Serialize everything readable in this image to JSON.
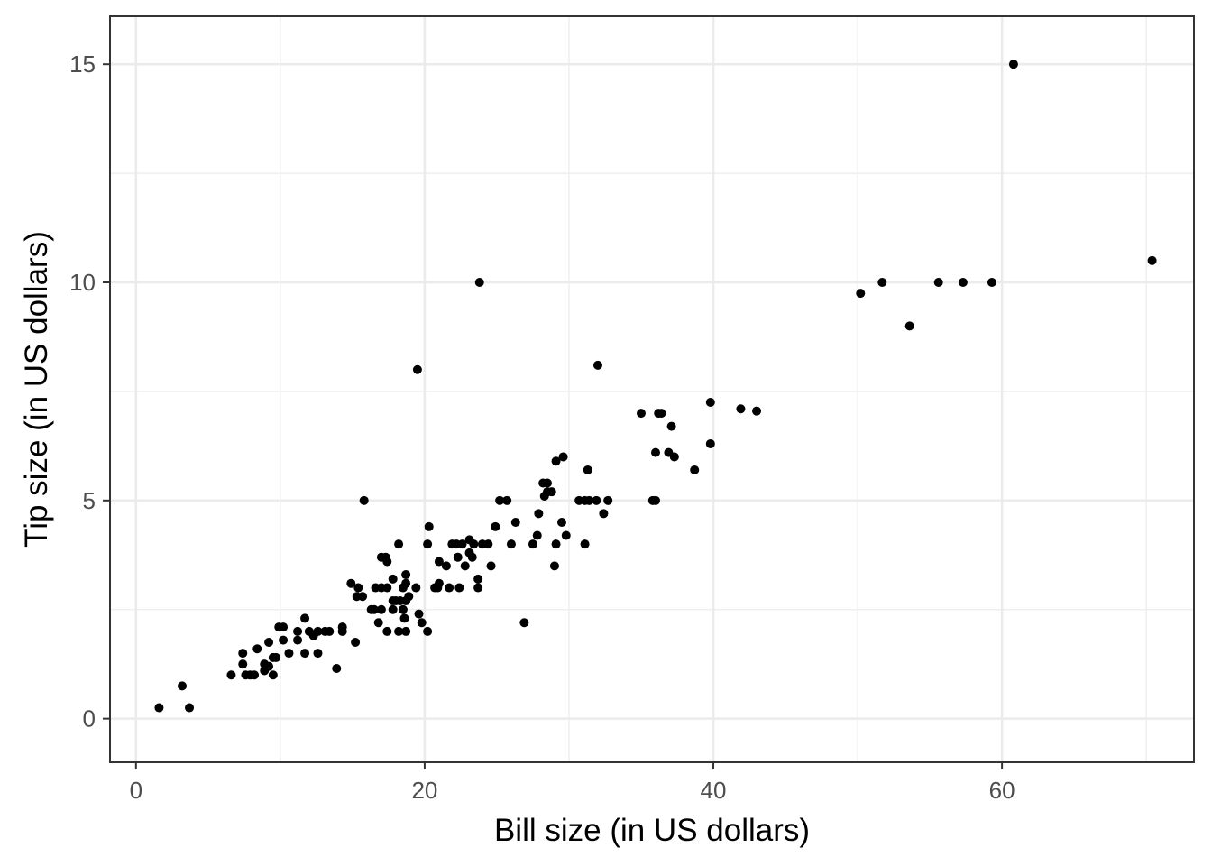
{
  "chart_data": {
    "type": "scatter",
    "title": "",
    "xlabel": "Bill size (in US dollars)",
    "ylabel": "Tip size (in US dollars)",
    "xlim": [
      -1.8,
      73.3
    ],
    "ylim": [
      -1.0,
      16.1
    ],
    "x_ticks": [
      0,
      20,
      40,
      60
    ],
    "x_tick_labels": [
      "0",
      "20",
      "40",
      "60"
    ],
    "y_ticks": [
      0,
      5,
      10,
      15
    ],
    "y_tick_labels": [
      "0",
      "5",
      "10",
      "15"
    ],
    "grid": true,
    "legend": "none",
    "point_color": "#000000",
    "panel_border_color": "#333333",
    "grid_color": "#ebebeb",
    "points": [
      [
        1.6,
        0.25
      ],
      [
        3.2,
        0.75
      ],
      [
        3.7,
        0.25
      ],
      [
        6.6,
        1.0
      ],
      [
        7.4,
        1.25
      ],
      [
        7.4,
        1.5
      ],
      [
        7.6,
        1.0
      ],
      [
        7.9,
        1.0
      ],
      [
        8.2,
        1.0
      ],
      [
        8.4,
        1.6
      ],
      [
        8.9,
        1.1
      ],
      [
        8.9,
        1.25
      ],
      [
        9.2,
        1.2
      ],
      [
        9.2,
        1.75
      ],
      [
        9.5,
        1.0
      ],
      [
        9.5,
        1.4
      ],
      [
        9.7,
        1.4
      ],
      [
        9.9,
        2.1
      ],
      [
        10.2,
        1.8
      ],
      [
        10.2,
        2.1
      ],
      [
        10.6,
        1.5
      ],
      [
        11.2,
        1.8
      ],
      [
        11.2,
        2.0
      ],
      [
        11.7,
        1.5
      ],
      [
        11.7,
        2.3
      ],
      [
        12.0,
        2.0
      ],
      [
        12.3,
        1.9
      ],
      [
        12.6,
        1.5
      ],
      [
        12.6,
        2.0
      ],
      [
        13.1,
        2.0
      ],
      [
        13.4,
        2.0
      ],
      [
        13.9,
        1.15
      ],
      [
        14.3,
        2.0
      ],
      [
        14.3,
        2.1
      ],
      [
        14.9,
        3.1
      ],
      [
        15.2,
        1.75
      ],
      [
        15.3,
        2.8
      ],
      [
        15.4,
        3.0
      ],
      [
        15.8,
        5.0
      ],
      [
        15.7,
        2.8
      ],
      [
        16.3,
        2.5
      ],
      [
        16.5,
        2.5
      ],
      [
        16.6,
        3.0
      ],
      [
        16.8,
        2.2
      ],
      [
        17.0,
        2.5
      ],
      [
        17.0,
        3.0
      ],
      [
        17.0,
        3.7
      ],
      [
        17.3,
        3.7
      ],
      [
        17.4,
        2.0
      ],
      [
        17.4,
        3.0
      ],
      [
        17.4,
        3.6
      ],
      [
        17.8,
        2.5
      ],
      [
        17.8,
        2.7
      ],
      [
        17.8,
        3.2
      ],
      [
        18.0,
        2.7
      ],
      [
        18.2,
        2.0
      ],
      [
        18.2,
        4.0
      ],
      [
        18.3,
        2.7
      ],
      [
        18.5,
        2.5
      ],
      [
        18.5,
        3.0
      ],
      [
        18.6,
        2.3
      ],
      [
        18.7,
        2.0
      ],
      [
        18.7,
        2.7
      ],
      [
        18.7,
        3.1
      ],
      [
        18.7,
        3.3
      ],
      [
        18.9,
        2.8
      ],
      [
        19.4,
        3.0
      ],
      [
        19.5,
        8.0
      ],
      [
        19.6,
        2.4
      ],
      [
        19.8,
        2.2
      ],
      [
        20.2,
        2.0
      ],
      [
        20.2,
        4.0
      ],
      [
        20.3,
        4.4
      ],
      [
        20.7,
        3.0
      ],
      [
        20.9,
        3.0
      ],
      [
        21.0,
        3.1
      ],
      [
        21.0,
        3.6
      ],
      [
        21.5,
        3.5
      ],
      [
        21.7,
        3.0
      ],
      [
        21.9,
        4.0
      ],
      [
        22.2,
        4.0
      ],
      [
        22.3,
        3.7
      ],
      [
        22.4,
        3.0
      ],
      [
        22.6,
        4.0
      ],
      [
        22.8,
        3.5
      ],
      [
        23.1,
        3.8
      ],
      [
        23.1,
        4.1
      ],
      [
        23.3,
        3.7
      ],
      [
        23.4,
        4.0
      ],
      [
        23.7,
        3.0
      ],
      [
        23.7,
        3.2
      ],
      [
        23.8,
        10.0
      ],
      [
        24.0,
        4.0
      ],
      [
        24.4,
        4.0
      ],
      [
        24.6,
        3.5
      ],
      [
        24.9,
        4.4
      ],
      [
        25.2,
        5.0
      ],
      [
        25.7,
        5.0
      ],
      [
        26.0,
        4.0
      ],
      [
        26.3,
        4.5
      ],
      [
        26.9,
        2.2
      ],
      [
        27.5,
        4.0
      ],
      [
        27.8,
        4.2
      ],
      [
        27.9,
        4.7
      ],
      [
        28.2,
        5.4
      ],
      [
        28.3,
        5.1
      ],
      [
        28.5,
        5.4
      ],
      [
        28.5,
        5.2
      ],
      [
        28.8,
        5.2
      ],
      [
        29.0,
        3.5
      ],
      [
        29.1,
        4.0
      ],
      [
        29.1,
        5.9
      ],
      [
        29.5,
        4.5
      ],
      [
        29.6,
        6.0
      ],
      [
        29.8,
        4.2
      ],
      [
        30.7,
        5.0
      ],
      [
        31.1,
        4.0
      ],
      [
        31.1,
        5.0
      ],
      [
        31.3,
        5.7
      ],
      [
        31.4,
        5.0
      ],
      [
        31.9,
        5.0
      ],
      [
        32.0,
        8.1
      ],
      [
        32.4,
        4.7
      ],
      [
        32.7,
        5.0
      ],
      [
        35.0,
        7.0
      ],
      [
        35.8,
        5.0
      ],
      [
        36.0,
        5.0
      ],
      [
        36.0,
        6.1
      ],
      [
        36.2,
        7.0
      ],
      [
        36.4,
        7.0
      ],
      [
        36.9,
        6.1
      ],
      [
        37.1,
        6.7
      ],
      [
        37.3,
        6.0
      ],
      [
        38.7,
        5.7
      ],
      [
        39.8,
        6.3
      ],
      [
        39.8,
        7.25
      ],
      [
        41.9,
        7.1
      ],
      [
        43.0,
        7.05
      ],
      [
        50.2,
        9.75
      ],
      [
        51.7,
        10.0
      ],
      [
        53.6,
        9.0
      ],
      [
        55.6,
        10.0
      ],
      [
        57.3,
        10.0
      ],
      [
        59.3,
        10.0
      ],
      [
        60.8,
        15.0
      ],
      [
        70.4,
        10.5
      ]
    ]
  }
}
